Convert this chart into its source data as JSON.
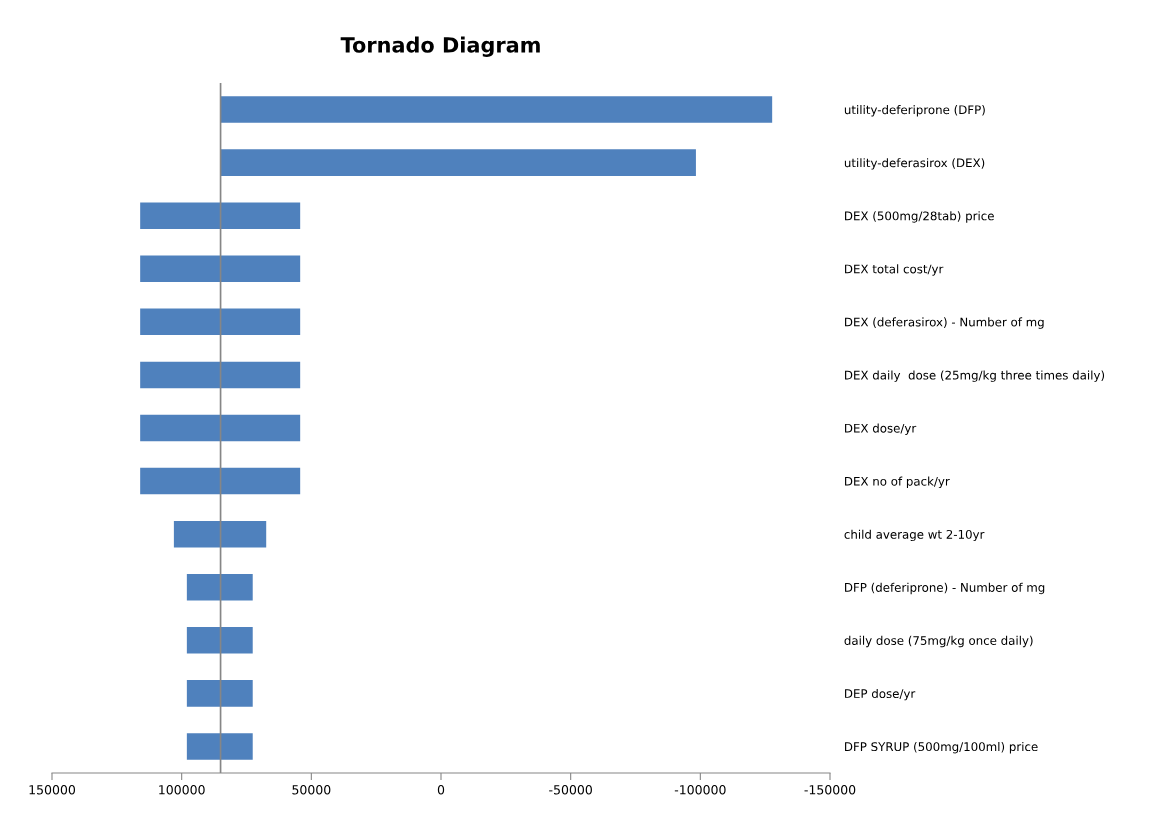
{
  "chart_data": {
    "type": "bar",
    "orientation": "horizontal",
    "title": "Tornado Diagram",
    "categories": [
      "utility-deferiprone (DFP)",
      "utility-deferasirox (DEX)",
      "DEX (500mg/28tab) price",
      "DEX total cost/yr",
      "DEX (deferasirox) - Number of mg",
      "DEX daily  dose (25mg/kg three times daily)",
      "DEX dose/yr",
      "DEX no of pack/yr",
      "child average wt 2-10yr",
      "DFP (deferiprone) - Number of mg",
      "daily dose (75mg/kg once daily)",
      "DEP dose/yr",
      "DFP SYRUP (500mg/100ml) price"
    ],
    "base": [
      85000,
      85000,
      116000,
      116000,
      116000,
      116000,
      116000,
      116000,
      103000,
      98000,
      98000,
      98000,
      98000
    ],
    "values": [
      -212700,
      -183300,
      -61700,
      -61700,
      -61700,
      -61700,
      -61700,
      -61700,
      -35600,
      -25400,
      -25400,
      -25400,
      -25400
    ],
    "color": "#4f81bd",
    "xlim": [
      150000,
      -150000
    ],
    "xticks": [
      150000,
      100000,
      50000,
      0,
      -50000,
      -100000,
      -150000
    ],
    "ref_lines": [
      {
        "axis": "x",
        "value": 85000,
        "color": "#868686"
      }
    ],
    "grid": false,
    "legend": false
  }
}
